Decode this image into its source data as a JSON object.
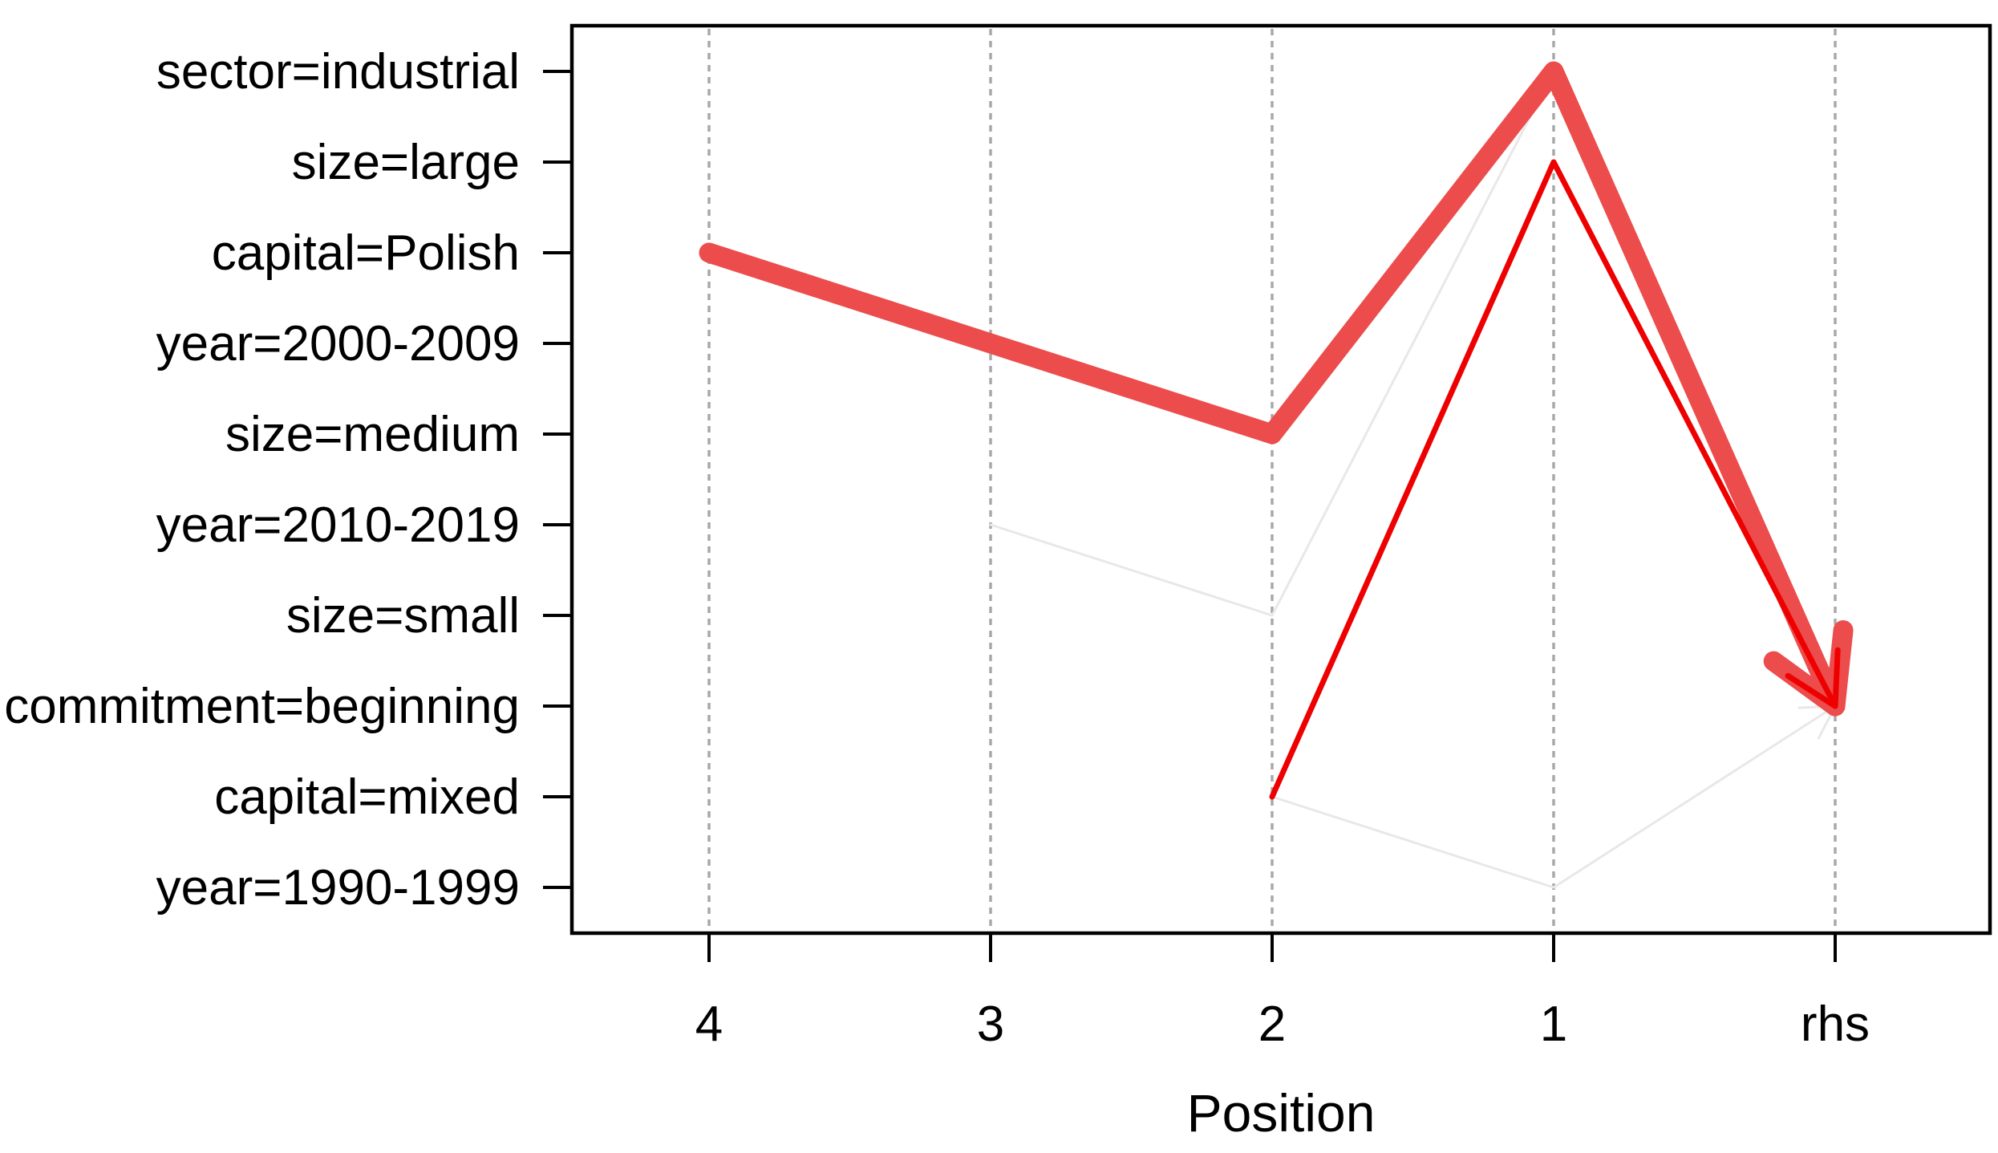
{
  "chart_data": {
    "type": "line",
    "subtype": "parallel-coordinates-rules",
    "title": "",
    "xlabel": "Position",
    "x_categories": [
      "4",
      "3",
      "2",
      "1",
      "rhs"
    ],
    "y_categories": [
      "sector=industrial",
      "size=large",
      "capital=Polish",
      "year=2000-2009",
      "size=medium",
      "year=2010-2019",
      "size=small",
      "commitment=beginning",
      "capital=mixed",
      "year=1990-1999"
    ],
    "grid": {
      "style": "dashed",
      "color": "#a8a8a8"
    },
    "legend": "none",
    "axis_color": "#000000",
    "background_color": "#ffffff",
    "rules": [
      {
        "name": "rule-gray-a",
        "color": "#e8e8e8",
        "width": 3,
        "arrow_len": 45,
        "points": [
          {
            "pos": "3",
            "item": "year=2010-2019"
          },
          {
            "pos": "2",
            "item": "size=small"
          },
          {
            "pos": "1",
            "item": "sector=industrial"
          },
          {
            "pos": "rhs",
            "item": "commitment=beginning"
          }
        ]
      },
      {
        "name": "rule-gray-b",
        "color": "#e8e8e8",
        "width": 3,
        "arrow_len": 45,
        "points": [
          {
            "pos": "2",
            "item": "capital=mixed"
          },
          {
            "pos": "1",
            "item": "year=1990-1999"
          },
          {
            "pos": "rhs",
            "item": "commitment=beginning"
          }
        ]
      },
      {
        "name": "rule-thick-red",
        "color": "#ec4c4c",
        "width": 25,
        "arrow_len": 95,
        "points": [
          {
            "pos": "4",
            "item": "capital=Polish"
          },
          {
            "pos": "3",
            "item": "year=2000-2009"
          },
          {
            "pos": "2",
            "item": "size=medium"
          },
          {
            "pos": "1",
            "item": "sector=industrial"
          },
          {
            "pos": "rhs",
            "item": "commitment=beginning"
          }
        ]
      },
      {
        "name": "rule-thin-red",
        "color": "#ee0000",
        "width": 7,
        "arrow_len": 70,
        "points": [
          {
            "pos": "2",
            "item": "capital=mixed"
          },
          {
            "pos": "1",
            "item": "size=large"
          },
          {
            "pos": "rhs",
            "item": "commitment=beginning"
          }
        ]
      }
    ]
  }
}
